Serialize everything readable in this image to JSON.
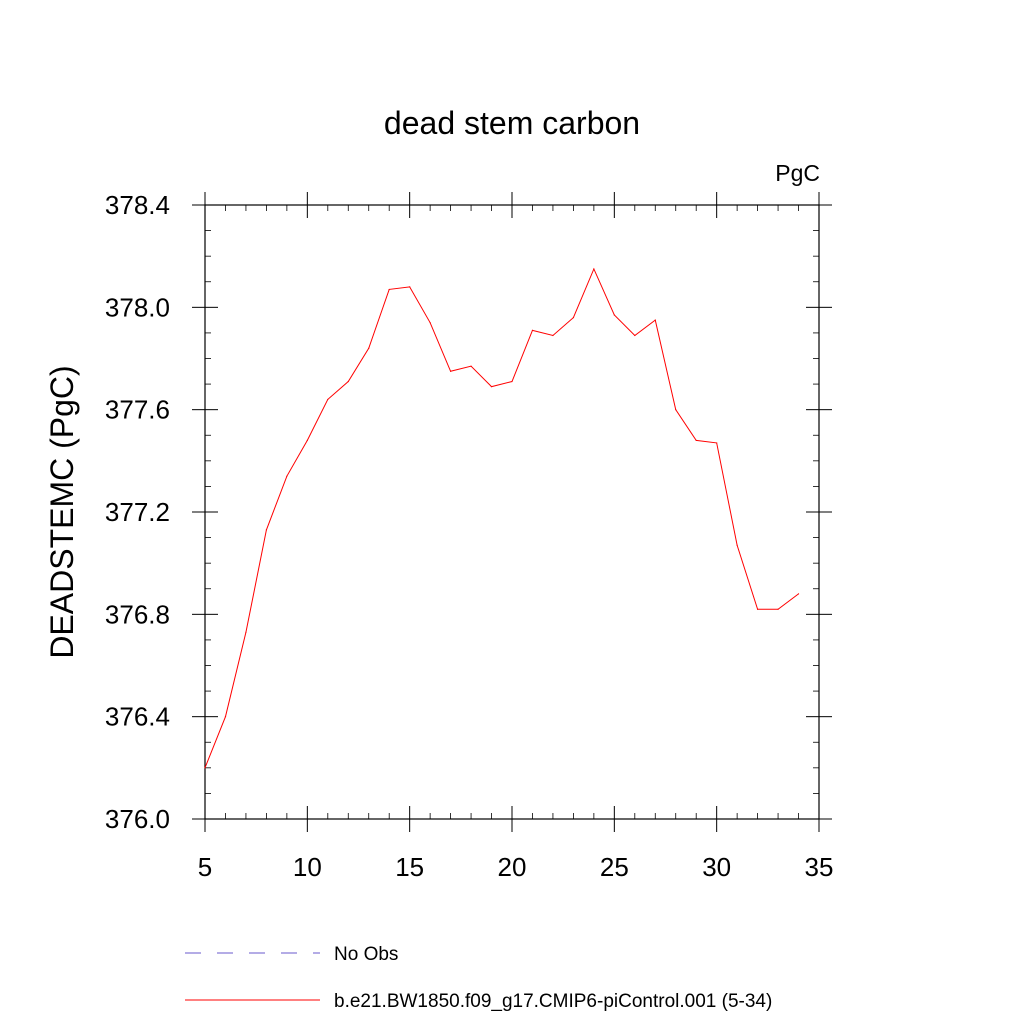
{
  "chart_data": {
    "type": "line",
    "title": "dead stem carbon",
    "units_label": "PgC",
    "ylabel": "DEADSTEMC  (PgC)",
    "xlabel": "",
    "xlim": [
      5,
      35
    ],
    "ylim": [
      376.0,
      378.4
    ],
    "x_ticks": [
      5,
      10,
      15,
      20,
      25,
      30,
      35
    ],
    "y_ticks": [
      376.0,
      376.4,
      376.8,
      377.2,
      377.6,
      378.0,
      378.4
    ],
    "y_tick_labels": [
      "376.0",
      "376.4",
      "376.8",
      "377.2",
      "377.6",
      "378.0",
      "378.4"
    ],
    "grid": false,
    "legend_position": "bottom",
    "series": [
      {
        "name": "b.e21.BW1850.f09_g17.CMIP6-piControl.001 (5-34)",
        "color": "#ff0000",
        "style": "solid",
        "x": [
          5,
          6,
          7,
          8,
          9,
          10,
          11,
          12,
          13,
          14,
          15,
          16,
          17,
          18,
          19,
          20,
          21,
          22,
          23,
          24,
          25,
          26,
          27,
          28,
          29,
          30,
          31,
          32,
          33,
          34
        ],
        "values": [
          376.2,
          376.4,
          376.73,
          377.13,
          377.34,
          377.48,
          377.64,
          377.71,
          377.84,
          378.07,
          378.08,
          377.94,
          377.75,
          377.77,
          377.69,
          377.71,
          377.91,
          377.89,
          377.96,
          378.15,
          377.97,
          377.89,
          377.95,
          377.6,
          377.48,
          377.47,
          377.07,
          376.82,
          376.82,
          376.88
        ]
      }
    ],
    "legend": [
      {
        "label": "No Obs",
        "color": "#6a5acd",
        "style": "dashed"
      },
      {
        "label": "b.e21.BW1850.f09_g17.CMIP6-piControl.001 (5-34)",
        "color": "#ff0000",
        "style": "solid"
      }
    ]
  }
}
